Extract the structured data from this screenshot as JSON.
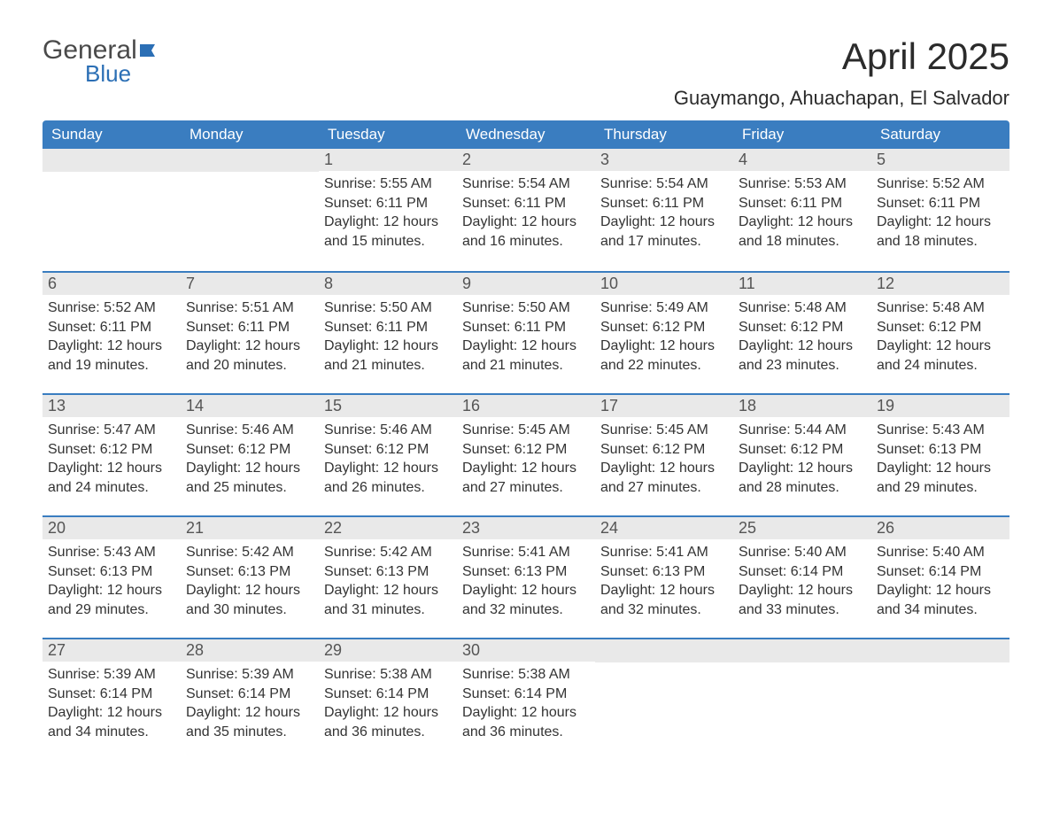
{
  "logo": {
    "word1": "General",
    "word2": "Blue",
    "word1_color": "#4a4a4a",
    "word2_color": "#2b6fb5",
    "flag_color": "#2b6fb5"
  },
  "title": "April 2025",
  "location": "Guaymango, Ahuachapan, El Salvador",
  "colors": {
    "header_bg": "#3a7dc0",
    "header_text": "#ffffff",
    "date_bar_bg": "#e9e9e9",
    "date_bar_text": "#555555",
    "body_text": "#333333",
    "week_divider": "#3a7dc0",
    "background": "#ffffff"
  },
  "typography": {
    "title_fontsize": 42,
    "location_fontsize": 22,
    "dow_fontsize": 17,
    "date_fontsize": 18,
    "info_fontsize": 16
  },
  "dow": [
    "Sunday",
    "Monday",
    "Tuesday",
    "Wednesday",
    "Thursday",
    "Friday",
    "Saturday"
  ],
  "weeks": [
    [
      null,
      null,
      {
        "date": "1",
        "sunrise": "Sunrise: 5:55 AM",
        "sunset": "Sunset: 6:11 PM",
        "daylight": "Daylight: 12 hours and 15 minutes."
      },
      {
        "date": "2",
        "sunrise": "Sunrise: 5:54 AM",
        "sunset": "Sunset: 6:11 PM",
        "daylight": "Daylight: 12 hours and 16 minutes."
      },
      {
        "date": "3",
        "sunrise": "Sunrise: 5:54 AM",
        "sunset": "Sunset: 6:11 PM",
        "daylight": "Daylight: 12 hours and 17 minutes."
      },
      {
        "date": "4",
        "sunrise": "Sunrise: 5:53 AM",
        "sunset": "Sunset: 6:11 PM",
        "daylight": "Daylight: 12 hours and 18 minutes."
      },
      {
        "date": "5",
        "sunrise": "Sunrise: 5:52 AM",
        "sunset": "Sunset: 6:11 PM",
        "daylight": "Daylight: 12 hours and 18 minutes."
      }
    ],
    [
      {
        "date": "6",
        "sunrise": "Sunrise: 5:52 AM",
        "sunset": "Sunset: 6:11 PM",
        "daylight": "Daylight: 12 hours and 19 minutes."
      },
      {
        "date": "7",
        "sunrise": "Sunrise: 5:51 AM",
        "sunset": "Sunset: 6:11 PM",
        "daylight": "Daylight: 12 hours and 20 minutes."
      },
      {
        "date": "8",
        "sunrise": "Sunrise: 5:50 AM",
        "sunset": "Sunset: 6:11 PM",
        "daylight": "Daylight: 12 hours and 21 minutes."
      },
      {
        "date": "9",
        "sunrise": "Sunrise: 5:50 AM",
        "sunset": "Sunset: 6:11 PM",
        "daylight": "Daylight: 12 hours and 21 minutes."
      },
      {
        "date": "10",
        "sunrise": "Sunrise: 5:49 AM",
        "sunset": "Sunset: 6:12 PM",
        "daylight": "Daylight: 12 hours and 22 minutes."
      },
      {
        "date": "11",
        "sunrise": "Sunrise: 5:48 AM",
        "sunset": "Sunset: 6:12 PM",
        "daylight": "Daylight: 12 hours and 23 minutes."
      },
      {
        "date": "12",
        "sunrise": "Sunrise: 5:48 AM",
        "sunset": "Sunset: 6:12 PM",
        "daylight": "Daylight: 12 hours and 24 minutes."
      }
    ],
    [
      {
        "date": "13",
        "sunrise": "Sunrise: 5:47 AM",
        "sunset": "Sunset: 6:12 PM",
        "daylight": "Daylight: 12 hours and 24 minutes."
      },
      {
        "date": "14",
        "sunrise": "Sunrise: 5:46 AM",
        "sunset": "Sunset: 6:12 PM",
        "daylight": "Daylight: 12 hours and 25 minutes."
      },
      {
        "date": "15",
        "sunrise": "Sunrise: 5:46 AM",
        "sunset": "Sunset: 6:12 PM",
        "daylight": "Daylight: 12 hours and 26 minutes."
      },
      {
        "date": "16",
        "sunrise": "Sunrise: 5:45 AM",
        "sunset": "Sunset: 6:12 PM",
        "daylight": "Daylight: 12 hours and 27 minutes."
      },
      {
        "date": "17",
        "sunrise": "Sunrise: 5:45 AM",
        "sunset": "Sunset: 6:12 PM",
        "daylight": "Daylight: 12 hours and 27 minutes."
      },
      {
        "date": "18",
        "sunrise": "Sunrise: 5:44 AM",
        "sunset": "Sunset: 6:12 PM",
        "daylight": "Daylight: 12 hours and 28 minutes."
      },
      {
        "date": "19",
        "sunrise": "Sunrise: 5:43 AM",
        "sunset": "Sunset: 6:13 PM",
        "daylight": "Daylight: 12 hours and 29 minutes."
      }
    ],
    [
      {
        "date": "20",
        "sunrise": "Sunrise: 5:43 AM",
        "sunset": "Sunset: 6:13 PM",
        "daylight": "Daylight: 12 hours and 29 minutes."
      },
      {
        "date": "21",
        "sunrise": "Sunrise: 5:42 AM",
        "sunset": "Sunset: 6:13 PM",
        "daylight": "Daylight: 12 hours and 30 minutes."
      },
      {
        "date": "22",
        "sunrise": "Sunrise: 5:42 AM",
        "sunset": "Sunset: 6:13 PM",
        "daylight": "Daylight: 12 hours and 31 minutes."
      },
      {
        "date": "23",
        "sunrise": "Sunrise: 5:41 AM",
        "sunset": "Sunset: 6:13 PM",
        "daylight": "Daylight: 12 hours and 32 minutes."
      },
      {
        "date": "24",
        "sunrise": "Sunrise: 5:41 AM",
        "sunset": "Sunset: 6:13 PM",
        "daylight": "Daylight: 12 hours and 32 minutes."
      },
      {
        "date": "25",
        "sunrise": "Sunrise: 5:40 AM",
        "sunset": "Sunset: 6:14 PM",
        "daylight": "Daylight: 12 hours and 33 minutes."
      },
      {
        "date": "26",
        "sunrise": "Sunrise: 5:40 AM",
        "sunset": "Sunset: 6:14 PM",
        "daylight": "Daylight: 12 hours and 34 minutes."
      }
    ],
    [
      {
        "date": "27",
        "sunrise": "Sunrise: 5:39 AM",
        "sunset": "Sunset: 6:14 PM",
        "daylight": "Daylight: 12 hours and 34 minutes."
      },
      {
        "date": "28",
        "sunrise": "Sunrise: 5:39 AM",
        "sunset": "Sunset: 6:14 PM",
        "daylight": "Daylight: 12 hours and 35 minutes."
      },
      {
        "date": "29",
        "sunrise": "Sunrise: 5:38 AM",
        "sunset": "Sunset: 6:14 PM",
        "daylight": "Daylight: 12 hours and 36 minutes."
      },
      {
        "date": "30",
        "sunrise": "Sunrise: 5:38 AM",
        "sunset": "Sunset: 6:14 PM",
        "daylight": "Daylight: 12 hours and 36 minutes."
      },
      null,
      null,
      null
    ]
  ]
}
